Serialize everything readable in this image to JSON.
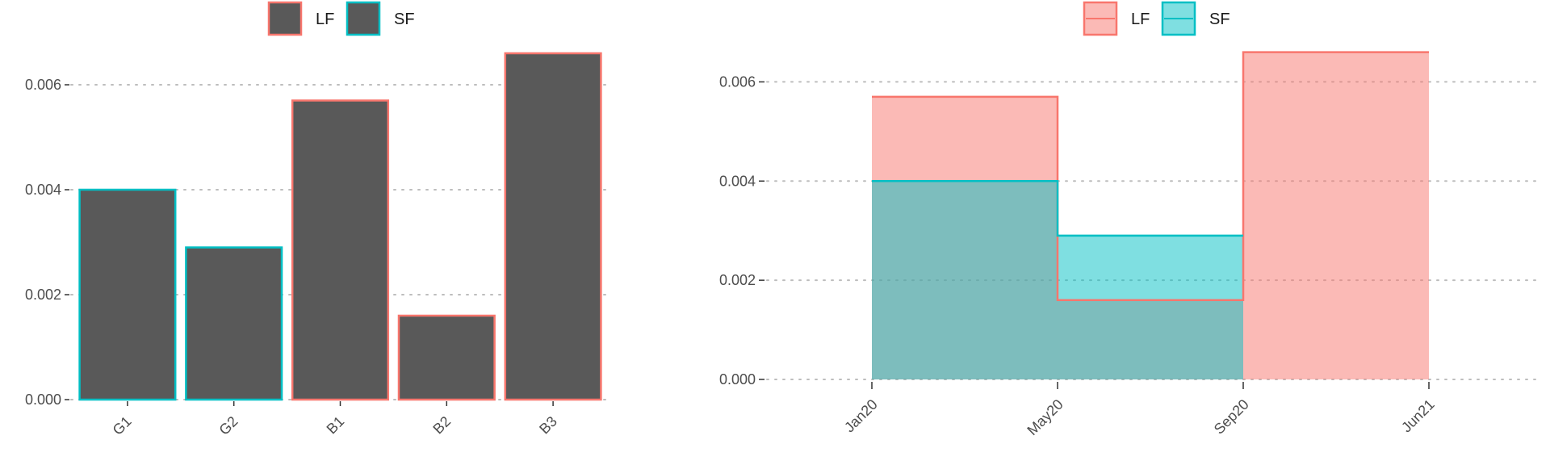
{
  "colors": {
    "LF": "#F8766D",
    "SF": "#00BFC4",
    "bar_fill": "#595959"
  },
  "chart_data": [
    {
      "type": "bar",
      "categories": [
        "G1",
        "G2",
        "B1",
        "B2",
        "B3"
      ],
      "values": [
        0.004,
        0.0029,
        0.0057,
        0.0016,
        0.0066
      ],
      "outline_group": [
        "SF",
        "SF",
        "LF",
        "LF",
        "LF"
      ],
      "legend": [
        "LF",
        "SF"
      ],
      "legend_position": "top",
      "ylim": [
        0,
        0.007
      ],
      "yticks": [
        0,
        0.002,
        0.004,
        0.006
      ],
      "ytick_labels": [
        "0.000",
        "0.002",
        "0.004",
        "0.006"
      ],
      "grid": "horizontal dotted"
    },
    {
      "type": "area",
      "step": true,
      "x_ticks": [
        "Jan20",
        "May20",
        "Sep20",
        "Jun21"
      ],
      "series": [
        {
          "name": "LF",
          "values": [
            0.0057,
            0.0016,
            0.0066
          ]
        },
        {
          "name": "SF",
          "values": [
            0.004,
            0.0029,
            0.0
          ]
        }
      ],
      "legend": [
        "LF",
        "SF"
      ],
      "legend_position": "top",
      "ylim": [
        0,
        0.007
      ],
      "yticks": [
        0,
        0.002,
        0.004,
        0.006
      ],
      "ytick_labels": [
        "0.000",
        "0.002",
        "0.004",
        "0.006"
      ],
      "grid": "horizontal dotted"
    }
  ]
}
